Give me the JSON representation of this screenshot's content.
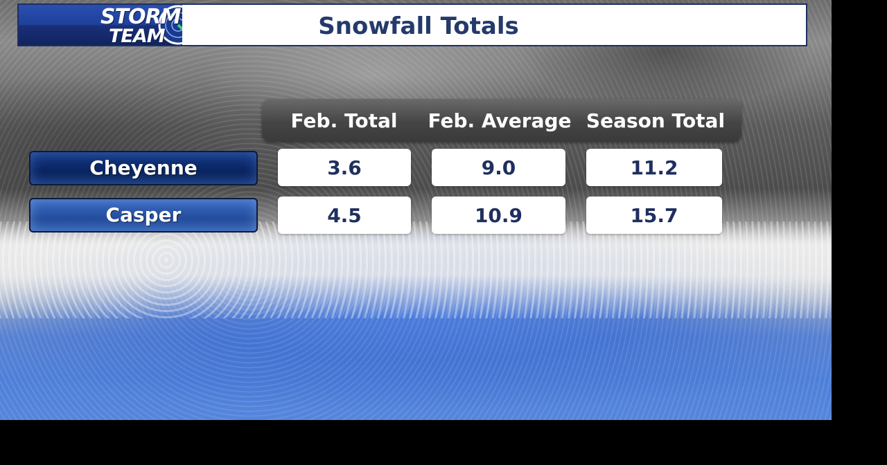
{
  "header": {
    "logo_line1": "STORM",
    "logo_line2": "TEAM",
    "title": "Snowfall Totals"
  },
  "colors": {
    "title_text": "#243a6b",
    "header_border": "#1d2f63",
    "row_label_dark": "#0e2b6d",
    "row_label_light": "#2a56a8",
    "cell_text": "#1f2f5e",
    "column_header_bg": "#454545"
  },
  "chart_data": {
    "type": "table",
    "title": "Snowfall Totals",
    "columns": [
      "Feb. Total",
      "Feb. Average",
      "Season Total"
    ],
    "rows": [
      {
        "name": "Cheyenne",
        "values": [
          "3.6",
          "9.0",
          "11.2"
        ]
      },
      {
        "name": "Casper",
        "values": [
          "4.5",
          "10.9",
          "15.7"
        ]
      }
    ]
  }
}
